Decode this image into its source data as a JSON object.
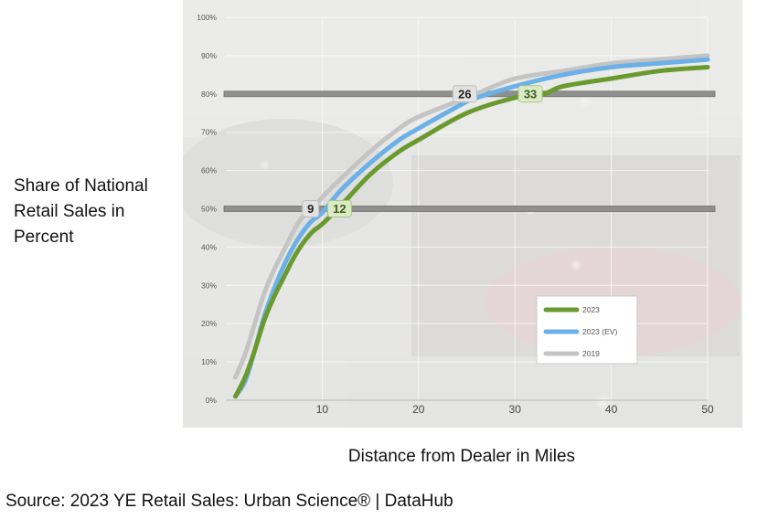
{
  "chart_data": {
    "type": "line",
    "title": "",
    "ylabel_lines": [
      "Share of National",
      "Retail Sales in",
      "Percent"
    ],
    "xlabel": "Distance from Dealer in Miles",
    "xlim": [
      0,
      50
    ],
    "ylim": [
      0,
      100
    ],
    "x_ticks": [
      10,
      20,
      30,
      40,
      50
    ],
    "y_ticks": [
      "0%",
      "10%",
      "20%",
      "30%",
      "40%",
      "50%",
      "60%",
      "70%",
      "80%",
      "90%",
      "100%"
    ],
    "y_tick_values": [
      0,
      10,
      20,
      30,
      40,
      50,
      60,
      70,
      80,
      90,
      100
    ],
    "grid": true,
    "legend_position": "bottom-right",
    "reference_lines": [
      50,
      80
    ],
    "series": [
      {
        "name": "2023",
        "color": "#6a9a2e",
        "x": [
          1,
          2,
          3,
          4,
          5,
          6,
          7,
          8,
          9,
          10,
          12,
          15,
          18,
          20,
          25,
          30,
          33,
          35,
          40,
          45,
          50
        ],
        "y": [
          1,
          6,
          13,
          21,
          27,
          32,
          37,
          41,
          44,
          46,
          51,
          59,
          65,
          68,
          75,
          79,
          80,
          82,
          84,
          86,
          87
        ]
      },
      {
        "name": "2023 (EV)",
        "color": "#6cb0e8",
        "x": [
          1,
          2,
          3,
          4,
          5,
          6,
          7,
          8,
          9,
          10,
          12,
          15,
          18,
          20,
          25,
          26,
          30,
          35,
          40,
          45,
          50
        ],
        "y": [
          1,
          5,
          13,
          22,
          29,
          35,
          40,
          44,
          47,
          49,
          55,
          62,
          68,
          71,
          78,
          79,
          82,
          85,
          87,
          88,
          89
        ]
      },
      {
        "name": "2019",
        "color": "#c4c4c4",
        "x": [
          1,
          2,
          3,
          4,
          5,
          6,
          7,
          8,
          9,
          10,
          12,
          15,
          18,
          20,
          25,
          26,
          30,
          35,
          40,
          45,
          50
        ],
        "y": [
          6,
          12,
          20,
          28,
          34,
          39,
          44,
          48,
          50,
          53,
          58,
          65,
          71,
          74,
          79,
          80,
          84,
          86,
          88,
          89,
          90
        ]
      }
    ],
    "annotations": [
      {
        "text": "9",
        "x": 8.8,
        "y": 50,
        "style": "grey"
      },
      {
        "text": "12",
        "x": 11.8,
        "y": 50,
        "style": "green"
      },
      {
        "text": "26",
        "x": 24.8,
        "y": 80,
        "style": "grey"
      },
      {
        "text": "33",
        "x": 31.6,
        "y": 80,
        "style": "green"
      }
    ]
  },
  "source": "Source: 2023 YE Retail Sales: Urban Science® | DataHub"
}
